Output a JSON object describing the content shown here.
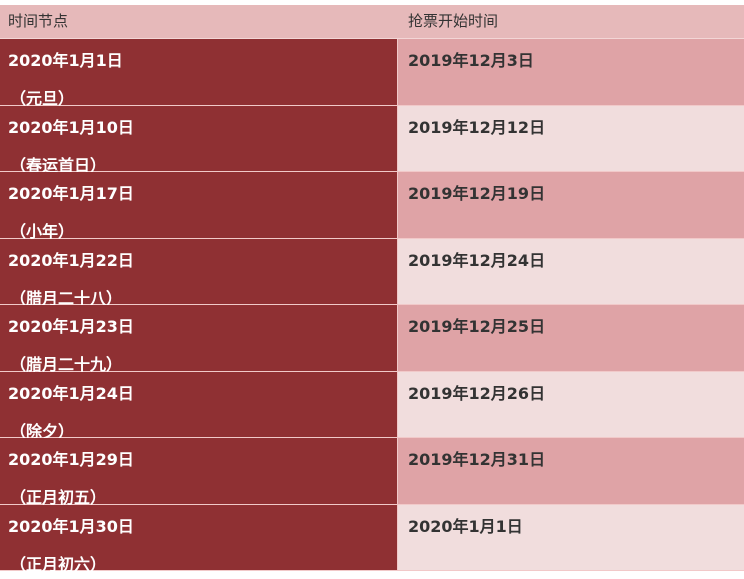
{
  "header": {
    "col1": "时间节点",
    "col2": "抢票开始时间"
  },
  "rows": [
    {
      "date": "2020年1月1日",
      "note": "（元旦）",
      "start": "2019年12月3日"
    },
    {
      "date": "2020年1月10日",
      "note": "（春运首日）",
      "start": "2019年12月12日"
    },
    {
      "date": "2020年1月17日",
      "note": "（小年）",
      "start": "2019年12月19日"
    },
    {
      "date": "2020年1月22日",
      "note": "（腊月二十八）",
      "start": "2019年12月24日"
    },
    {
      "date": "2020年1月23日",
      "note": "（腊月二十九）",
      "start": "2019年12月25日"
    },
    {
      "date": "2020年1月24日",
      "note": "（除夕）",
      "start": "2019年12月26日"
    },
    {
      "date": "2020年1月29日",
      "note": "（正月初五）",
      "start": "2019年12月31日"
    },
    {
      "date": "2020年1月30日",
      "note": "（正月初六）",
      "start": "2020年1月1日"
    }
  ],
  "colors": {
    "left": "#8f3033",
    "header": "#e6b9ba",
    "row_dark": "#dfa3a6",
    "row_light": "#f1dddd"
  }
}
